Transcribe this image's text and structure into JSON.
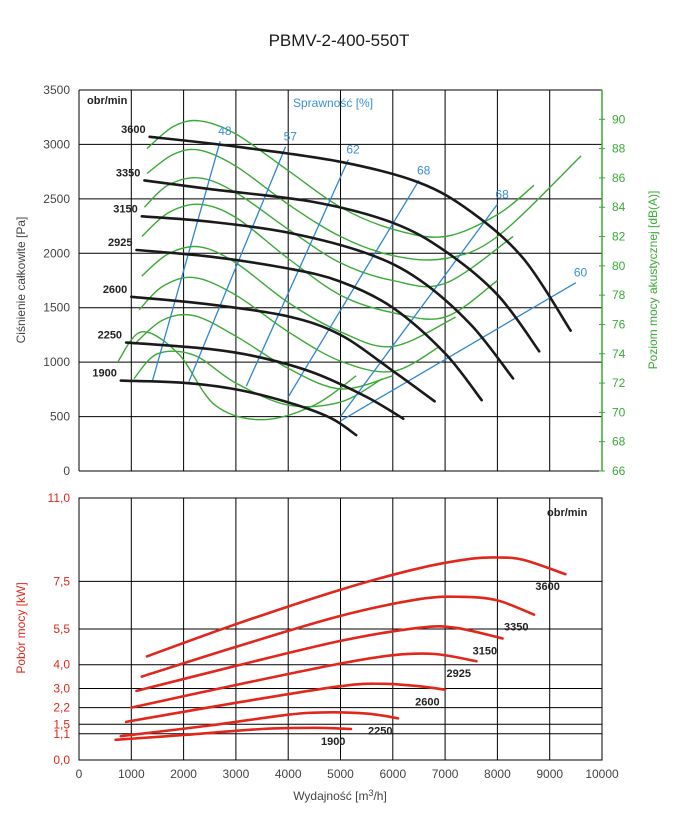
{
  "colors": {
    "black_curve": "#1a1a1a",
    "efficiency": "#2f86d0",
    "noise": "#3aaa35",
    "power": "#e1261c"
  },
  "chart_data": [
    {
      "type": "line",
      "title": "PBMV-2-400-550T",
      "xlabel": "Wydajność [m3/h]",
      "ylabel": "Ciśnienie całkowite [Pa]",
      "y2label": "Poziom mocy akustycznej [dB(A)]",
      "efficiency_label": "Sprawność [%]",
      "speed_unit": "obr/min",
      "xlim": [
        0,
        10000
      ],
      "ylim": [
        0,
        3500
      ],
      "y2lim": [
        66,
        92
      ],
      "xticks": [
        0,
        1000,
        2000,
        3000,
        4000,
        5000,
        6000,
        7000,
        8000,
        9000,
        10000
      ],
      "yticks": [
        0,
        500,
        1000,
        1500,
        2000,
        2500,
        3000,
        3500
      ],
      "y2ticks": [
        66,
        68,
        70,
        72,
        74,
        76,
        78,
        80,
        82,
        84,
        86,
        88,
        90
      ],
      "series": [
        {
          "name": "3600",
          "x": [
            1350,
            3000,
            5000,
            6500,
            7500,
            8500,
            9400
          ],
          "y": [
            3070,
            2980,
            2840,
            2650,
            2380,
            1950,
            1290
          ]
        },
        {
          "name": "3350",
          "x": [
            1250,
            2500,
            4500,
            6000,
            7000,
            8000,
            8800
          ],
          "y": [
            2670,
            2590,
            2470,
            2280,
            2020,
            1620,
            1100
          ]
        },
        {
          "name": "3150",
          "x": [
            1200,
            2500,
            4000,
            5500,
            6500,
            7500,
            8300
          ],
          "y": [
            2340,
            2290,
            2190,
            2000,
            1760,
            1340,
            850
          ]
        },
        {
          "name": "2925",
          "x": [
            1100,
            2500,
            4000,
            5000,
            6000,
            7000,
            7700
          ],
          "y": [
            2030,
            1970,
            1860,
            1740,
            1500,
            1080,
            650
          ]
        },
        {
          "name": "2600",
          "x": [
            1000,
            2500,
            4000,
            5000,
            6000,
            6800
          ],
          "y": [
            1600,
            1530,
            1420,
            1250,
            920,
            640
          ]
        },
        {
          "name": "2250",
          "x": [
            900,
            2500,
            3500,
            4500,
            5500,
            6200
          ],
          "y": [
            1180,
            1120,
            1040,
            900,
            680,
            480
          ]
        },
        {
          "name": "1900",
          "x": [
            800,
            2000,
            3000,
            4000,
            4800,
            5300
          ],
          "y": [
            830,
            810,
            750,
            630,
            490,
            330
          ]
        }
      ],
      "efficiency_lines": [
        {
          "label": "48",
          "x": [
            1400,
            2700
          ],
          "y": [
            820,
            3030
          ]
        },
        {
          "label": "57",
          "x": [
            2100,
            3950
          ],
          "y": [
            820,
            2980
          ]
        },
        {
          "label": "62",
          "x": [
            3200,
            5150
          ],
          "y": [
            780,
            2860
          ]
        },
        {
          "label": "68",
          "x": [
            4000,
            6500
          ],
          "y": [
            680,
            2670
          ]
        },
        {
          "label": "68",
          "x": [
            5000,
            8000
          ],
          "y": [
            500,
            2450
          ]
        },
        {
          "label": "60",
          "x": [
            5000,
            9500
          ],
          "y": [
            460,
            1730
          ]
        }
      ],
      "noise_curves_dB": [
        {
          "x": [
            1300,
            1800,
            2300,
            3000,
            4000,
            5000,
            6000,
            7000,
            8000,
            8700
          ],
          "y": [
            88.0,
            89.5,
            89.9,
            89.0,
            86.5,
            84.0,
            82.5,
            82.0,
            83.5,
            85.5
          ]
        },
        {
          "x": [
            1300,
            1800,
            2300,
            3000,
            4000,
            5000,
            6000,
            7000,
            8000,
            9600
          ],
          "y": [
            86.3,
            87.6,
            87.9,
            86.8,
            84.2,
            82.0,
            80.7,
            80.5,
            82.0,
            87.5
          ]
        },
        {
          "x": [
            1250,
            1700,
            2300,
            3000,
            4000,
            5000,
            6000,
            7000,
            8300
          ],
          "y": [
            84.0,
            85.5,
            86.0,
            85.0,
            82.5,
            80.2,
            79.0,
            78.8,
            82.0
          ]
        },
        {
          "x": [
            1200,
            1700,
            2300,
            3000,
            4000,
            5000,
            6000,
            7000,
            8000
          ],
          "y": [
            82.0,
            83.6,
            84.2,
            83.3,
            80.5,
            78.0,
            76.8,
            76.5,
            79.0
          ]
        },
        {
          "x": [
            1200,
            1700,
            2300,
            3000,
            4000,
            5000,
            6000,
            7200
          ],
          "y": [
            79.3,
            80.8,
            81.3,
            80.2,
            77.5,
            75.5,
            74.5,
            76.5
          ]
        },
        {
          "x": [
            1150,
            1600,
            2200,
            3000,
            4000,
            5000,
            6000,
            6900
          ],
          "y": [
            77.0,
            78.6,
            79.2,
            78.0,
            75.5,
            73.5,
            72.8,
            74.5
          ]
        },
        {
          "x": [
            1100,
            1600,
            2200,
            3000,
            4000,
            5000,
            6000
          ],
          "y": [
            74.8,
            76.3,
            76.6,
            75.2,
            73.0,
            71.6,
            72.5
          ]
        },
        {
          "x": [
            1050,
            1500,
            2200,
            3000,
            4000,
            5000,
            5800
          ],
          "y": [
            72.3,
            74.0,
            73.9,
            72.0,
            70.5,
            70.7,
            72.3
          ]
        },
        {
          "x": [
            750,
            1200,
            1900,
            2600,
            3500,
            4500,
            5300
          ],
          "y": [
            73.5,
            75.5,
            74.0,
            70.5,
            69.5,
            70.5,
            72.5
          ]
        }
      ]
    },
    {
      "type": "line",
      "xlabel": "Wydajność [m3/h]",
      "ylabel": "Pobór mocy [kW]",
      "speed_unit": "obr/min",
      "xlim": [
        0,
        10000
      ],
      "ylim": [
        0,
        11
      ],
      "xticks": [
        0,
        1000,
        2000,
        3000,
        4000,
        5000,
        6000,
        7000,
        8000,
        9000,
        10000
      ],
      "yticks": [
        "0,0",
        "1,1",
        "1,5",
        "2,2",
        "3,0",
        "4,0",
        "5,5",
        "7,5",
        "11,0"
      ],
      "ytick_values": [
        0,
        1.1,
        1.5,
        2.2,
        3.0,
        4.0,
        5.5,
        7.5,
        11.0
      ],
      "series": [
        {
          "name": "3600",
          "x": [
            1300,
            3000,
            5000,
            6500,
            7500,
            8000,
            8500,
            9300
          ],
          "y": [
            4.35,
            5.7,
            7.15,
            8.05,
            8.45,
            8.5,
            8.4,
            7.8
          ]
        },
        {
          "name": "3350",
          "x": [
            1200,
            3000,
            5000,
            6500,
            7300,
            8000,
            8700
          ],
          "y": [
            3.5,
            4.75,
            6.05,
            6.75,
            6.85,
            6.7,
            6.1
          ]
        },
        {
          "name": "3150",
          "x": [
            1100,
            3000,
            5000,
            6500,
            7200,
            8100
          ],
          "y": [
            2.9,
            3.95,
            5.0,
            5.55,
            5.55,
            5.1
          ]
        },
        {
          "name": "2925",
          "x": [
            1000,
            3000,
            5000,
            6000,
            6800,
            7600
          ],
          "y": [
            2.2,
            3.15,
            4.05,
            4.4,
            4.45,
            4.15
          ]
        },
        {
          "name": "2600",
          "x": [
            900,
            3000,
            5000,
            5800,
            6500,
            7000
          ],
          "y": [
            1.6,
            2.4,
            3.1,
            3.2,
            3.1,
            2.95
          ]
        },
        {
          "name": "2250",
          "x": [
            800,
            2500,
            4000,
            4700,
            5500,
            6100
          ],
          "y": [
            1.0,
            1.45,
            1.9,
            2.0,
            1.95,
            1.75
          ]
        },
        {
          "name": "1900",
          "x": [
            700,
            2000,
            3500,
            4500,
            5200
          ],
          "y": [
            0.85,
            1.05,
            1.3,
            1.35,
            1.3
          ]
        }
      ]
    }
  ]
}
